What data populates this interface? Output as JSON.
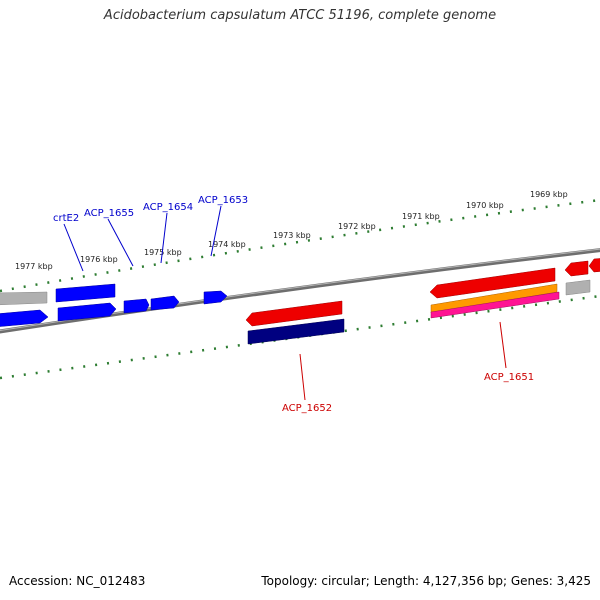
{
  "title": "Acidobacterium capsulatum ATCC 51196, complete genome",
  "footer": {
    "accession": "Accession: NC_012483",
    "summary": "Topology: circular; Length: 4,127,356 bp; Genes: 3,425"
  },
  "scale_labels": [
    "1977 kbp",
    "1976 kbp",
    "1975 kbp",
    "1974 kbp",
    "1973 kbp",
    "1972 kbp",
    "1971 kbp",
    "1970 kbp",
    "1969 kbp"
  ],
  "gene_labels": [
    {
      "text": "crtE2",
      "color": "#0000cc"
    },
    {
      "text": "ACP_1655",
      "color": "#0000cc"
    },
    {
      "text": "ACP_1654",
      "color": "#0000cc"
    },
    {
      "text": "ACP_1653",
      "color": "#0000cc"
    },
    {
      "text": "ACP_1652",
      "color": "#cc0000"
    },
    {
      "text": "ACP_1651",
      "color": "#cc0000"
    }
  ],
  "colors": {
    "backbone": "#808080",
    "forward_gene": "#0000ff",
    "reverse_gene": "#ee0000",
    "cds_dark": "#000080",
    "rna_gray": "#b0b0b0",
    "orange": "#ff9900",
    "magenta": "#ff1493",
    "tick": "#2e7d32"
  }
}
